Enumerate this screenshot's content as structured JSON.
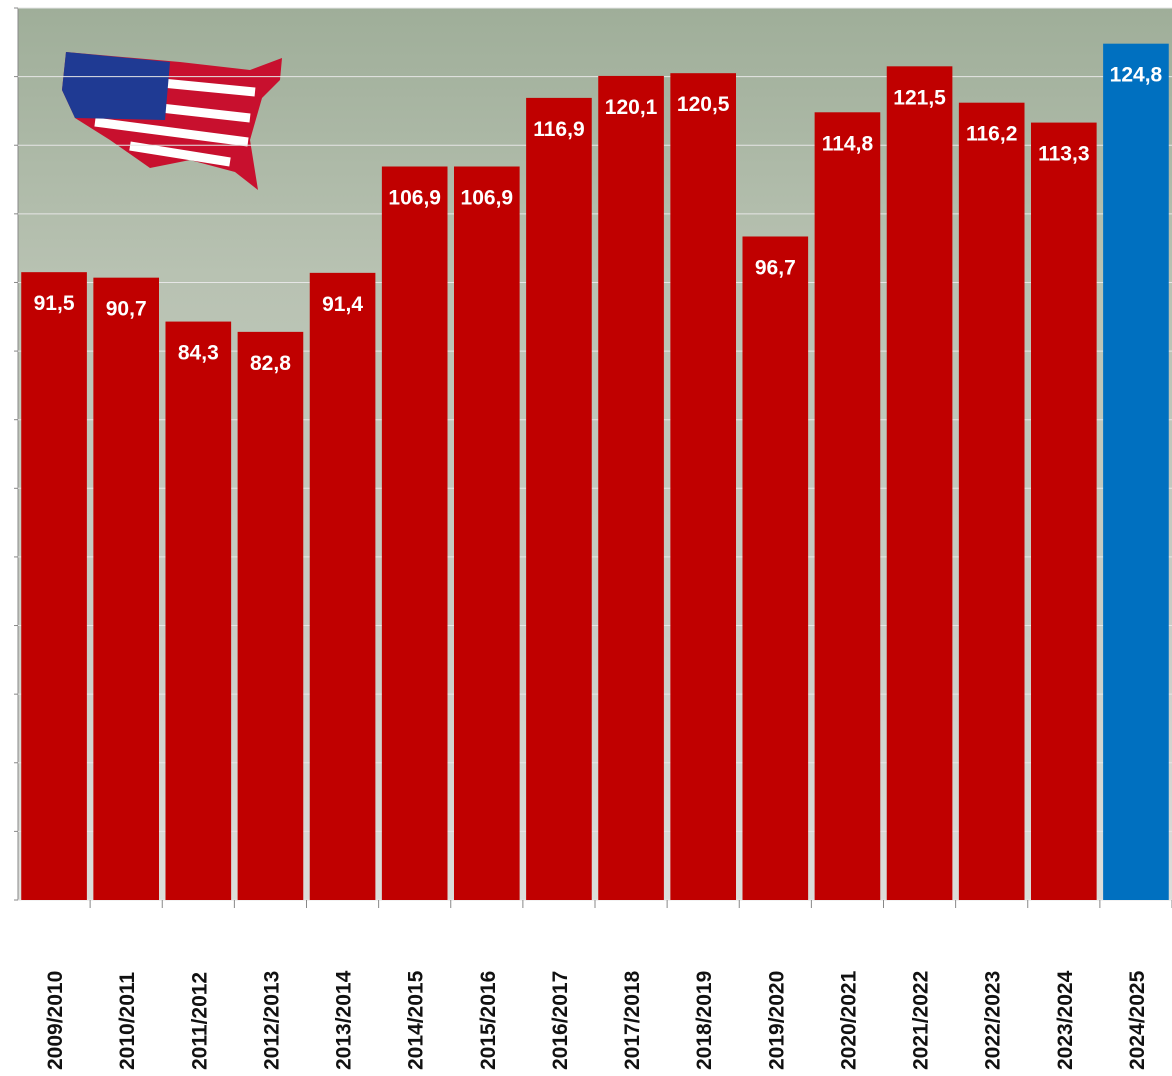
{
  "chart_data": {
    "type": "bar",
    "categories": [
      "2009/2010",
      "2010/2011",
      "2011/2012",
      "2012/2013",
      "2013/2014",
      "2014/2015",
      "2015/2016",
      "2016/2017",
      "2017/2018",
      "2018/2019",
      "2019/2020",
      "2020/2021",
      "2021/2022",
      "2022/2023",
      "2023/2024",
      "2024/2025"
    ],
    "values": [
      91.5,
      90.7,
      84.3,
      82.8,
      91.4,
      106.9,
      106.9,
      116.9,
      120.1,
      120.5,
      96.7,
      114.8,
      121.5,
      116.2,
      113.3,
      124.8
    ],
    "value_labels": [
      "91,5",
      "90,7",
      "84,3",
      "82,8",
      "91,4",
      "106,9",
      "106,9",
      "116,9",
      "120,1",
      "120,5",
      "96,7",
      "114,8",
      "121,5",
      "116,2",
      "113,3",
      "124,8"
    ],
    "colors": [
      "#c00000",
      "#c00000",
      "#c00000",
      "#c00000",
      "#c00000",
      "#c00000",
      "#c00000",
      "#c00000",
      "#c00000",
      "#c00000",
      "#c00000",
      "#c00000",
      "#c00000",
      "#c00000",
      "#c00000",
      "#0070c0"
    ],
    "ylim": [
      0,
      130
    ],
    "yticks": [
      0,
      10,
      20,
      30,
      40,
      50,
      60,
      70,
      80,
      90,
      100,
      110,
      120,
      130
    ],
    "grid": true
  }
}
